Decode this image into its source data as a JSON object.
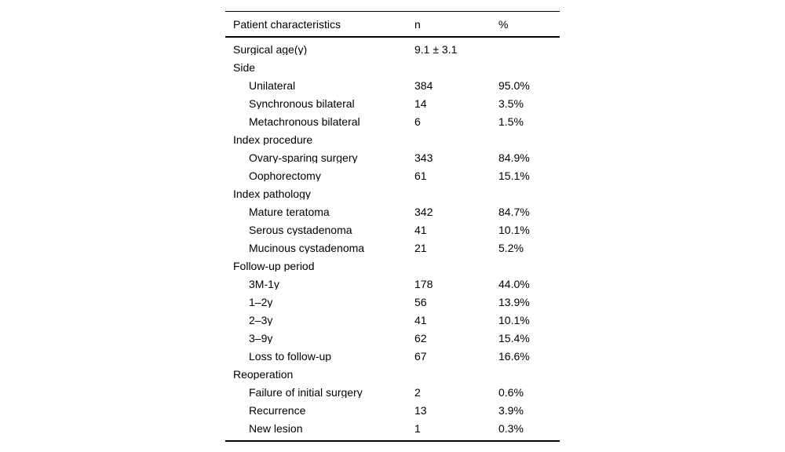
{
  "page": {
    "background_color": "#ffffff",
    "text_color": "#000000",
    "rule_color": "#000000"
  },
  "table": {
    "columns": [
      {
        "key": "label",
        "label": "Patient characteristics"
      },
      {
        "key": "n",
        "label": "n"
      },
      {
        "key": "pct",
        "label": "%"
      }
    ],
    "rows": [
      {
        "label": "Surgical age(y)",
        "indent": 0,
        "n": "9.1 ± 3.1",
        "pct": ""
      },
      {
        "label": "Side",
        "indent": 0,
        "n": "",
        "pct": ""
      },
      {
        "label": "Unilateral",
        "indent": 1,
        "n": "384",
        "pct": "95.0%"
      },
      {
        "label": "Synchronous bilateral",
        "indent": 1,
        "n": "14",
        "pct": "3.5%"
      },
      {
        "label": "Metachronous bilateral",
        "indent": 1,
        "n": "6",
        "pct": "1.5%"
      },
      {
        "label": "Index procedure",
        "indent": 0,
        "n": "",
        "pct": ""
      },
      {
        "label": "Ovary-sparing surgery",
        "indent": 1,
        "n": "343",
        "pct": "84.9%"
      },
      {
        "label": "Oophorectomy",
        "indent": 1,
        "n": "61",
        "pct": "15.1%"
      },
      {
        "label": "Index pathology",
        "indent": 0,
        "n": "",
        "pct": ""
      },
      {
        "label": "Mature teratoma",
        "indent": 1,
        "n": "342",
        "pct": "84.7%"
      },
      {
        "label": "Serous cystadenoma",
        "indent": 1,
        "n": "41",
        "pct": "10.1%"
      },
      {
        "label": "Mucinous cystadenoma",
        "indent": 1,
        "n": "21",
        "pct": "5.2%"
      },
      {
        "label": "Follow-up period",
        "indent": 0,
        "n": "",
        "pct": ""
      },
      {
        "label": "3M-1y",
        "indent": 1,
        "n": "178",
        "pct": "44.0%"
      },
      {
        "label": "1–2y",
        "indent": 1,
        "n": "56",
        "pct": "13.9%"
      },
      {
        "label": "2–3y",
        "indent": 1,
        "n": "41",
        "pct": "10.1%"
      },
      {
        "label": "3–9y",
        "indent": 1,
        "n": "62",
        "pct": "15.4%"
      },
      {
        "label": "Loss to follow-up",
        "indent": 1,
        "n": "67",
        "pct": "16.6%"
      },
      {
        "label": "Reoperation",
        "indent": 0,
        "n": "",
        "pct": ""
      },
      {
        "label": "Failure of initial surgery",
        "indent": 1,
        "n": "2",
        "pct": "0.6%"
      },
      {
        "label": "Recurrence",
        "indent": 1,
        "n": "13",
        "pct": "3.9%"
      },
      {
        "label": "New lesion",
        "indent": 1,
        "n": "1",
        "pct": "0.3%"
      }
    ]
  }
}
